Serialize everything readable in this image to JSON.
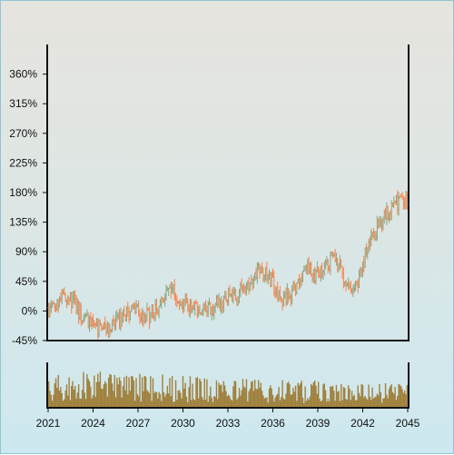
{
  "chart_data": {
    "type": "ohlc",
    "title": "",
    "xlabel": "",
    "ylabel": "",
    "y_unit": "%",
    "ylim": [
      -45,
      405
    ],
    "y_ticks": [
      -45,
      0,
      45,
      90,
      135,
      180,
      225,
      270,
      315,
      360
    ],
    "y_tick_labels": [
      "-45%",
      "0%",
      "45%",
      "90%",
      "135%",
      "180%",
      "225%",
      "270%",
      "315%",
      "360%"
    ],
    "xlim": [
      2021,
      2045
    ],
    "x_ticks": [
      2021,
      2024,
      2027,
      2030,
      2033,
      2036,
      2039,
      2042,
      2045
    ],
    "x_tick_labels": [
      "2021",
      "2024",
      "2027",
      "2030",
      "2033",
      "2036",
      "2039",
      "2042",
      "2045"
    ],
    "grid": false,
    "legend": "none",
    "colors": {
      "up": "#8aa57e",
      "down": "#ff7f45",
      "volume": "#a0803c"
    },
    "price_path": [
      {
        "x": 2021.0,
        "y": 5
      },
      {
        "x": 2021.5,
        "y": 10
      },
      {
        "x": 2022.0,
        "y": 30
      },
      {
        "x": 2022.4,
        "y": 20
      },
      {
        "x": 2022.8,
        "y": 10
      },
      {
        "x": 2023.3,
        "y": -10
      },
      {
        "x": 2023.8,
        "y": -20
      },
      {
        "x": 2024.2,
        "y": -25
      },
      {
        "x": 2024.7,
        "y": -30
      },
      {
        "x": 2025.2,
        "y": -25
      },
      {
        "x": 2025.8,
        "y": -15
      },
      {
        "x": 2026.2,
        "y": -5
      },
      {
        "x": 2026.8,
        "y": 0
      },
      {
        "x": 2027.3,
        "y": -10
      },
      {
        "x": 2027.8,
        "y": -5
      },
      {
        "x": 2028.2,
        "y": 5
      },
      {
        "x": 2028.7,
        "y": 20
      },
      {
        "x": 2029.2,
        "y": 40
      },
      {
        "x": 2029.6,
        "y": 25
      },
      {
        "x": 2030.2,
        "y": 10
      },
      {
        "x": 2030.8,
        "y": 5
      },
      {
        "x": 2031.2,
        "y": -5
      },
      {
        "x": 2031.7,
        "y": 0
      },
      {
        "x": 2032.2,
        "y": 10
      },
      {
        "x": 2032.7,
        "y": 15
      },
      {
        "x": 2033.2,
        "y": 25
      },
      {
        "x": 2033.6,
        "y": 20
      },
      {
        "x": 2034.1,
        "y": 35
      },
      {
        "x": 2034.6,
        "y": 50
      },
      {
        "x": 2035.1,
        "y": 65
      },
      {
        "x": 2035.5,
        "y": 60
      },
      {
        "x": 2035.9,
        "y": 45
      },
      {
        "x": 2036.3,
        "y": 30
      },
      {
        "x": 2036.7,
        "y": 20
      },
      {
        "x": 2037.2,
        "y": 25
      },
      {
        "x": 2037.6,
        "y": 35
      },
      {
        "x": 2038.0,
        "y": 60
      },
      {
        "x": 2038.3,
        "y": 75
      },
      {
        "x": 2038.7,
        "y": 55
      },
      {
        "x": 2039.2,
        "y": 60
      },
      {
        "x": 2039.6,
        "y": 70
      },
      {
        "x": 2040.0,
        "y": 80
      },
      {
        "x": 2040.4,
        "y": 70
      },
      {
        "x": 2040.8,
        "y": 50
      },
      {
        "x": 2041.2,
        "y": 40
      },
      {
        "x": 2041.5,
        "y": 35
      },
      {
        "x": 2041.9,
        "y": 60
      },
      {
        "x": 2042.3,
        "y": 95
      },
      {
        "x": 2042.7,
        "y": 115
      },
      {
        "x": 2043.0,
        "y": 130
      },
      {
        "x": 2043.4,
        "y": 140
      },
      {
        "x": 2043.8,
        "y": 155
      },
      {
        "x": 2044.2,
        "y": 165
      },
      {
        "x": 2044.6,
        "y": 170
      },
      {
        "x": 2045.0,
        "y": 160
      }
    ],
    "volume_ylim": [
      0,
      100
    ],
    "volume_level": [
      {
        "x": 2021,
        "y": 35
      },
      {
        "x": 2024,
        "y": 40
      },
      {
        "x": 2027,
        "y": 38
      },
      {
        "x": 2030,
        "y": 35
      },
      {
        "x": 2033,
        "y": 32
      },
      {
        "x": 2036,
        "y": 30
      },
      {
        "x": 2039,
        "y": 30
      },
      {
        "x": 2042,
        "y": 28
      },
      {
        "x": 2045,
        "y": 28
      }
    ]
  }
}
